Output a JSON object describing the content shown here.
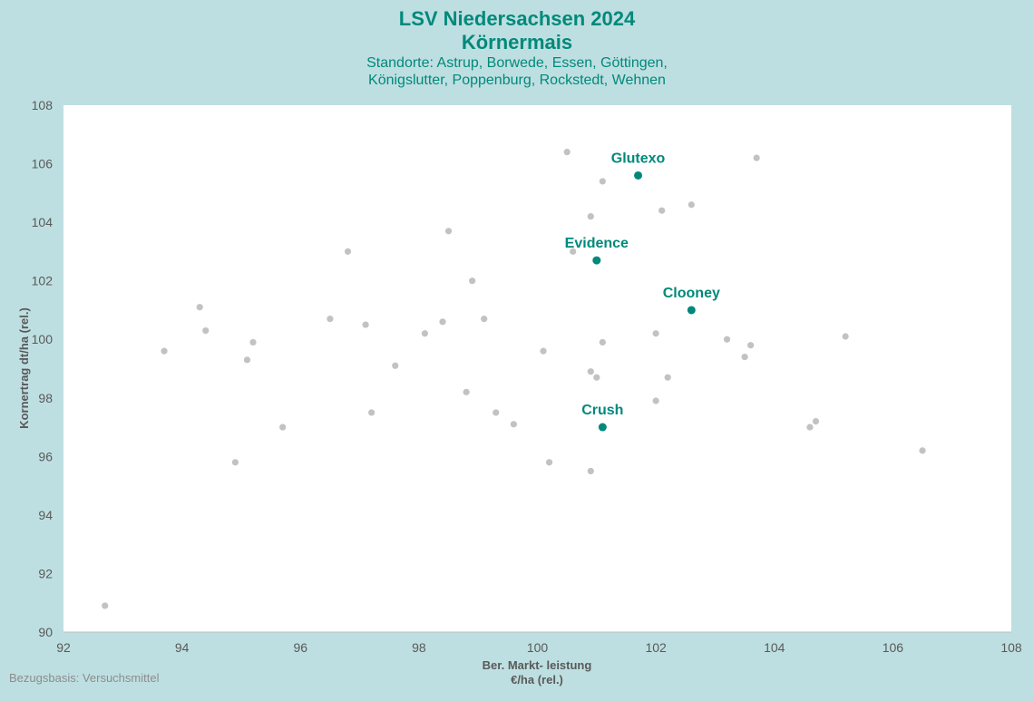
{
  "title_line1": "LSV Niedersachsen 2024",
  "title_line2": "Körnermais",
  "subtitle_line1": "Standorte: Astrup, Borwede, Essen, Göttingen,",
  "subtitle_line2": "Königslutter, Poppenburg, Rockstedt, Wehnen",
  "footnote": "Bezugsbasis: Versuchsmittel",
  "colors": {
    "background": "#bedfe1",
    "highlight": "#00897b",
    "point": "#c2c2c2"
  },
  "chart_data": {
    "type": "scatter",
    "xlabel_line1": "Ber. Markt- leistung",
    "xlabel_line2": "€/ha (rel.)",
    "ylabel": "Kornertrag dt/ha (rel.)",
    "xlim": [
      92,
      108
    ],
    "ylim": [
      90,
      108
    ],
    "xticks": [
      92,
      94,
      96,
      98,
      100,
      102,
      104,
      106,
      108
    ],
    "yticks": [
      90,
      92,
      94,
      96,
      98,
      100,
      102,
      104,
      106,
      108
    ],
    "points": [
      [
        92.7,
        90.9
      ],
      [
        93.7,
        99.6
      ],
      [
        94.3,
        101.1
      ],
      [
        94.4,
        100.3
      ],
      [
        94.9,
        95.8
      ],
      [
        95.1,
        99.3
      ],
      [
        95.2,
        99.9
      ],
      [
        95.7,
        97.0
      ],
      [
        96.5,
        100.7
      ],
      [
        96.8,
        103.0
      ],
      [
        97.1,
        100.5
      ],
      [
        97.2,
        97.5
      ],
      [
        97.6,
        99.1
      ],
      [
        98.1,
        100.2
      ],
      [
        98.4,
        100.6
      ],
      [
        98.5,
        103.7
      ],
      [
        98.8,
        98.2
      ],
      [
        98.9,
        102.0
      ],
      [
        99.1,
        100.7
      ],
      [
        99.3,
        97.5
      ],
      [
        99.6,
        97.1
      ],
      [
        100.1,
        99.6
      ],
      [
        100.2,
        95.8
      ],
      [
        100.5,
        106.4
      ],
      [
        100.6,
        103.0
      ],
      [
        100.9,
        104.2
      ],
      [
        100.9,
        98.9
      ],
      [
        100.9,
        95.5
      ],
      [
        101.0,
        98.7
      ],
      [
        101.1,
        105.4
      ],
      [
        101.1,
        99.9
      ],
      [
        102.0,
        100.2
      ],
      [
        102.0,
        97.9
      ],
      [
        102.1,
        104.4
      ],
      [
        102.2,
        98.7
      ],
      [
        102.6,
        104.6
      ],
      [
        103.2,
        100.0
      ],
      [
        103.5,
        99.4
      ],
      [
        103.6,
        99.8
      ],
      [
        103.7,
        106.2
      ],
      [
        104.6,
        97.0
      ],
      [
        104.7,
        97.2
      ],
      [
        105.2,
        100.1
      ],
      [
        106.5,
        96.2
      ]
    ],
    "highlights": [
      {
        "name": "Glutexo",
        "x": 101.7,
        "y": 105.6
      },
      {
        "name": "Evidence",
        "x": 101.0,
        "y": 102.7
      },
      {
        "name": "Clooney",
        "x": 102.6,
        "y": 101.0
      },
      {
        "name": "Crush",
        "x": 101.1,
        "y": 97.0
      }
    ]
  }
}
